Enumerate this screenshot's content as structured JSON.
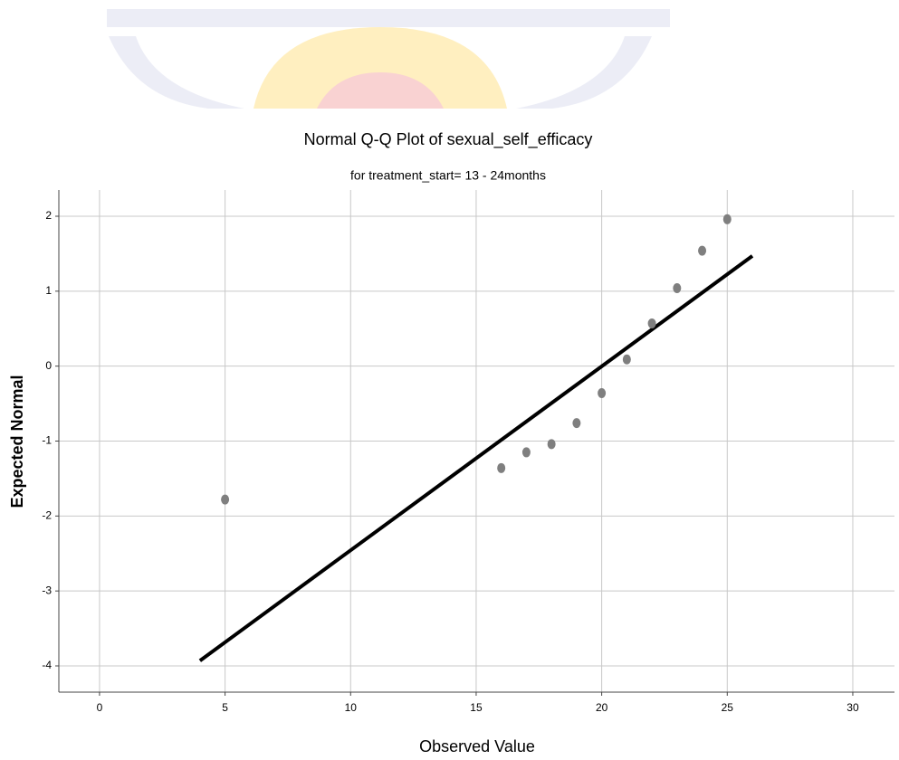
{
  "chart_data": {
    "type": "qq",
    "title": "Normal Q-Q Plot of sexual_self_efficacy",
    "subtitle": "for treatment_start= 13 - 24months",
    "x_label": "Observed Value",
    "y_label": "Expected Normal",
    "x": [
      5,
      16,
      17,
      18,
      19,
      20,
      21,
      22,
      23,
      24,
      25
    ],
    "values": [
      -1.78,
      -1.36,
      -1.15,
      -1.04,
      -0.76,
      -0.36,
      0.09,
      0.57,
      1.04,
      1.54,
      1.96
    ],
    "color": "#7f7f7f",
    "reference_line": {
      "x": [
        4,
        26
      ],
      "values": [
        -3.93,
        1.47
      ],
      "color": "#000000"
    },
    "xlim": [
      -1.62,
      31.66
    ],
    "ylim": [
      -4.35,
      2.35
    ],
    "xticks": [
      0,
      5,
      10,
      15,
      20,
      25,
      30
    ],
    "yticks": [
      -4,
      -3,
      -2,
      -1,
      0,
      1,
      2
    ],
    "grid": true
  }
}
